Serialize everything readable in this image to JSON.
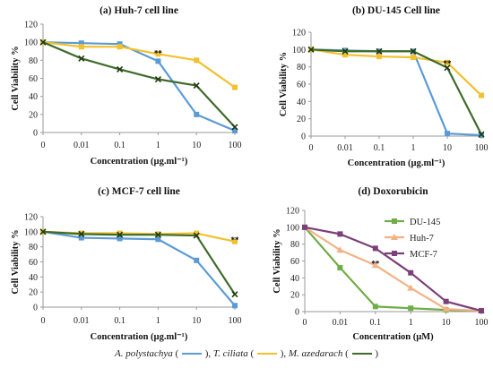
{
  "chart_data": [
    {
      "type": "line",
      "title": "(a) Huh-7 cell line",
      "xlabel": "Concentration (µg.ml⁻¹)",
      "ylabel": "Cell Viability %",
      "categories": [
        "0",
        "0.01",
        "0.1",
        "1",
        "10",
        "100"
      ],
      "ylim": [
        0,
        120
      ],
      "yticks": [
        "0",
        "20",
        "40",
        "60",
        "80",
        "100",
        "120"
      ],
      "series": [
        {
          "color": "#5b9bd5",
          "marker": "square",
          "values": [
            100,
            99,
            98,
            79,
            20,
            2
          ]
        },
        {
          "color": "#f2c12e",
          "marker": "square",
          "values": [
            100,
            95,
            95,
            87,
            80,
            50
          ]
        },
        {
          "color": "#3e6b2b",
          "marker": "x",
          "values": [
            100,
            82,
            70,
            59,
            52,
            6
          ]
        }
      ],
      "annotations": [
        {
          "x": "1",
          "y": 88,
          "text": "**"
        }
      ]
    },
    {
      "type": "line",
      "title": "(b) DU-145 Cell line",
      "xlabel": "Concentration (µg.ml⁻¹)",
      "ylabel": "Cell Viability %",
      "categories": [
        "0",
        "0.01",
        "0.1",
        "1",
        "10",
        "100"
      ],
      "ylim": [
        0,
        120
      ],
      "yticks": [
        "0",
        "20",
        "40",
        "60",
        "80",
        "100",
        "120"
      ],
      "series": [
        {
          "color": "#5b9bd5",
          "marker": "square",
          "values": [
            100,
            99,
            98,
            98,
            3,
            1
          ]
        },
        {
          "color": "#f2c12e",
          "marker": "square",
          "values": [
            100,
            94,
            92,
            91,
            85,
            47
          ]
        },
        {
          "color": "#3e6b2b",
          "marker": "x",
          "values": [
            100,
            98,
            98,
            98,
            79,
            2
          ]
        }
      ],
      "annotations": [
        {
          "x": "10",
          "y": 84,
          "text": "**"
        }
      ]
    },
    {
      "type": "line",
      "title": "(c) MCF-7 cell line",
      "xlabel": "Concentration (µg.ml⁻¹)",
      "ylabel": "Cell Viability %",
      "categories": [
        "0",
        "0.01",
        "0.1",
        "1",
        "10",
        "100"
      ],
      "ylim": [
        0,
        120
      ],
      "yticks": [
        "0",
        "20",
        "40",
        "60",
        "80",
        "100",
        "120"
      ],
      "series": [
        {
          "color": "#5b9bd5",
          "marker": "square",
          "values": [
            100,
            92,
            91,
            90,
            62,
            2
          ]
        },
        {
          "color": "#f2c12e",
          "marker": "square",
          "values": [
            100,
            98,
            98,
            97,
            98,
            87
          ]
        },
        {
          "color": "#3e6b2b",
          "marker": "x",
          "values": [
            100,
            97,
            96,
            96,
            95,
            17
          ]
        }
      ],
      "annotations": [
        {
          "x": "100",
          "y": 89,
          "text": "**"
        }
      ]
    },
    {
      "type": "line",
      "title": "(d) Doxorubicin",
      "xlabel": "Concentration (µM)",
      "ylabel": "Cell Viability %",
      "categories": [
        "0",
        "0.01",
        "0.1",
        "1",
        "10",
        "100"
      ],
      "ylim": [
        0,
        120
      ],
      "yticks": [
        "0",
        "20",
        "40",
        "60",
        "80",
        "100",
        "120"
      ],
      "legend_position": "right",
      "series": [
        {
          "name": "DU-145",
          "color": "#70ad47",
          "marker": "square",
          "values": [
            100,
            52,
            6,
            4,
            2,
            1
          ]
        },
        {
          "name": "Huh-7",
          "color": "#f4b183",
          "marker": "triangle",
          "values": [
            100,
            73,
            55,
            28,
            3,
            1
          ]
        },
        {
          "name": "MCF-7",
          "color": "#7b3f7a",
          "marker": "square",
          "values": [
            100,
            92,
            75,
            46,
            12,
            1
          ]
        }
      ],
      "annotations": [
        {
          "x": "0.1",
          "y": 57,
          "text": "**"
        }
      ]
    }
  ],
  "legend": {
    "names": [
      "A. polystachya",
      "T. ciliata",
      "M. azedarach"
    ],
    "colors": [
      "#5b9bd5",
      "#f2c12e",
      "#3e6b2b"
    ]
  }
}
